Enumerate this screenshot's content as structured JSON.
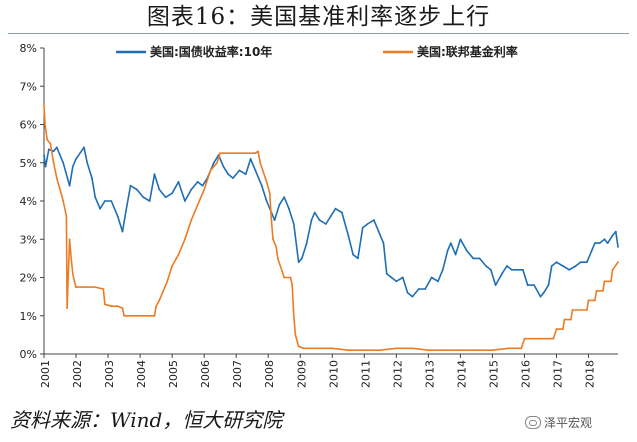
{
  "figure": {
    "title": "图表16：美国基准利率逐步上行",
    "source": "资料来源：Wind，恒大研究院",
    "watermark": "泽平宏观",
    "watermark_icon": "wechat-icon"
  },
  "chart_data": {
    "type": "line",
    "title": "图表16：美国基准利率逐步上行",
    "xlabel": "",
    "ylabel": "",
    "xlim": [
      2001.0,
      2018.92
    ],
    "ylim": [
      0,
      8
    ],
    "x_ticks": [
      "2001",
      "2002",
      "2003",
      "2004",
      "2005",
      "2006",
      "2007",
      "2008",
      "2009",
      "2010",
      "2011",
      "2012",
      "2013",
      "2014",
      "2015",
      "2016",
      "2017",
      "2018"
    ],
    "y_ticks": [
      "0%",
      "1%",
      "2%",
      "3%",
      "4%",
      "5%",
      "6%",
      "7%",
      "8%"
    ],
    "grid": false,
    "legend_position": "top",
    "series": [
      {
        "name": "美国:国债收益率:10年",
        "color": "#1f6eb4",
        "x": [
          2001.0,
          2001.05,
          2001.15,
          2001.3,
          2001.4,
          2001.6,
          2001.8,
          2001.9,
          2002.0,
          2002.25,
          2002.35,
          2002.5,
          2002.6,
          2002.75,
          2002.9,
          2003.1,
          2003.3,
          2003.45,
          2003.55,
          2003.7,
          2003.9,
          2004.1,
          2004.3,
          2004.45,
          2004.6,
          2004.8,
          2005.0,
          2005.2,
          2005.4,
          2005.6,
          2005.8,
          2005.95,
          2006.1,
          2006.3,
          2006.45,
          2006.6,
          2006.75,
          2006.9,
          2007.1,
          2007.3,
          2007.45,
          2007.6,
          2007.8,
          2007.95,
          2008.1,
          2008.2,
          2008.35,
          2008.5,
          2008.65,
          2008.8,
          2008.95,
          2009.05,
          2009.2,
          2009.35,
          2009.45,
          2009.6,
          2009.8,
          2009.95,
          2010.1,
          2010.3,
          2010.5,
          2010.65,
          2010.8,
          2010.95,
          2011.1,
          2011.3,
          2011.45,
          2011.6,
          2011.7,
          2011.85,
          2012.0,
          2012.2,
          2012.35,
          2012.5,
          2012.7,
          2012.9,
          2013.1,
          2013.3,
          2013.45,
          2013.6,
          2013.7,
          2013.85,
          2014.0,
          2014.2,
          2014.4,
          2014.6,
          2014.8,
          2014.95,
          2015.1,
          2015.3,
          2015.45,
          2015.6,
          2015.8,
          2015.95,
          2016.1,
          2016.3,
          2016.5,
          2016.6,
          2016.75,
          2016.85,
          2017.0,
          2017.2,
          2017.4,
          2017.6,
          2017.75,
          2017.95,
          2018.1,
          2018.2,
          2018.35,
          2018.5,
          2018.6,
          2018.75,
          2018.85,
          2018.92
        ],
        "values": [
          5.2,
          4.9,
          5.35,
          5.3,
          5.4,
          5.0,
          4.4,
          4.9,
          5.1,
          5.4,
          5.0,
          4.6,
          4.1,
          3.8,
          4.0,
          4.0,
          3.6,
          3.2,
          3.7,
          4.4,
          4.3,
          4.1,
          4.0,
          4.7,
          4.3,
          4.1,
          4.2,
          4.5,
          4.0,
          4.3,
          4.5,
          4.4,
          4.6,
          5.0,
          5.2,
          4.9,
          4.7,
          4.6,
          4.8,
          4.7,
          5.1,
          4.8,
          4.4,
          4.0,
          3.7,
          3.5,
          3.9,
          4.1,
          3.8,
          3.4,
          2.4,
          2.5,
          2.9,
          3.5,
          3.7,
          3.5,
          3.4,
          3.6,
          3.8,
          3.7,
          3.1,
          2.6,
          2.5,
          3.3,
          3.4,
          3.5,
          3.2,
          2.9,
          2.1,
          2.0,
          1.9,
          2.0,
          1.6,
          1.5,
          1.7,
          1.7,
          2.0,
          1.9,
          2.2,
          2.7,
          2.9,
          2.6,
          3.0,
          2.7,
          2.5,
          2.5,
          2.3,
          2.2,
          1.8,
          2.1,
          2.3,
          2.2,
          2.2,
          2.2,
          1.8,
          1.8,
          1.5,
          1.6,
          1.8,
          2.3,
          2.4,
          2.3,
          2.2,
          2.3,
          2.4,
          2.4,
          2.7,
          2.9,
          2.9,
          3.0,
          2.9,
          3.1,
          3.2,
          2.8
        ]
      },
      {
        "name": "美国:联邦基金利率",
        "color": "#ec7c24",
        "x": [
          2001.0,
          2001.03,
          2001.1,
          2001.2,
          2001.3,
          2001.4,
          2001.5,
          2001.6,
          2001.7,
          2001.72,
          2001.8,
          2001.85,
          2001.9,
          2001.95,
          2002.0,
          2002.3,
          2002.6,
          2002.85,
          2002.9,
          2003.1,
          2003.3,
          2003.45,
          2003.5,
          2003.7,
          2003.9,
          2004.1,
          2004.3,
          2004.45,
          2004.5,
          2004.6,
          2004.7,
          2004.85,
          2005.0,
          2005.2,
          2005.4,
          2005.6,
          2005.8,
          2006.0,
          2006.2,
          2006.4,
          2006.5,
          2006.6,
          2006.8,
          2007.0,
          2007.3,
          2007.6,
          2007.68,
          2007.75,
          2007.85,
          2007.95,
          2008.05,
          2008.1,
          2008.15,
          2008.25,
          2008.3,
          2008.5,
          2008.7,
          2008.75,
          2008.8,
          2008.85,
          2008.95,
          2009.1,
          2009.5,
          2010.0,
          2010.5,
          2011.0,
          2011.5,
          2012.0,
          2012.5,
          2013.0,
          2013.5,
          2014.0,
          2014.5,
          2015.0,
          2015.5,
          2015.9,
          2016.0,
          2016.5,
          2016.9,
          2017.0,
          2017.2,
          2017.25,
          2017.45,
          2017.5,
          2017.95,
          2018.0,
          2018.2,
          2018.25,
          2018.45,
          2018.5,
          2018.7,
          2018.75,
          2018.92
        ],
        "values": [
          6.5,
          6.0,
          5.6,
          5.5,
          5.0,
          4.6,
          4.3,
          4.0,
          3.6,
          1.2,
          3.0,
          2.5,
          2.1,
          1.9,
          1.75,
          1.75,
          1.75,
          1.7,
          1.3,
          1.25,
          1.25,
          1.2,
          1.0,
          1.0,
          1.0,
          1.0,
          1.0,
          1.0,
          1.25,
          1.4,
          1.6,
          1.9,
          2.3,
          2.6,
          3.0,
          3.5,
          3.9,
          4.3,
          4.8,
          5.0,
          5.25,
          5.25,
          5.25,
          5.25,
          5.25,
          5.25,
          5.3,
          5.0,
          4.75,
          4.5,
          4.2,
          3.5,
          3.0,
          2.8,
          2.5,
          2.0,
          2.0,
          1.8,
          1.0,
          0.5,
          0.2,
          0.15,
          0.15,
          0.15,
          0.1,
          0.1,
          0.1,
          0.15,
          0.15,
          0.1,
          0.1,
          0.1,
          0.1,
          0.1,
          0.15,
          0.15,
          0.4,
          0.4,
          0.4,
          0.65,
          0.65,
          0.9,
          0.9,
          1.15,
          1.15,
          1.4,
          1.4,
          1.65,
          1.65,
          1.9,
          1.9,
          2.2,
          2.4
        ]
      }
    ]
  }
}
